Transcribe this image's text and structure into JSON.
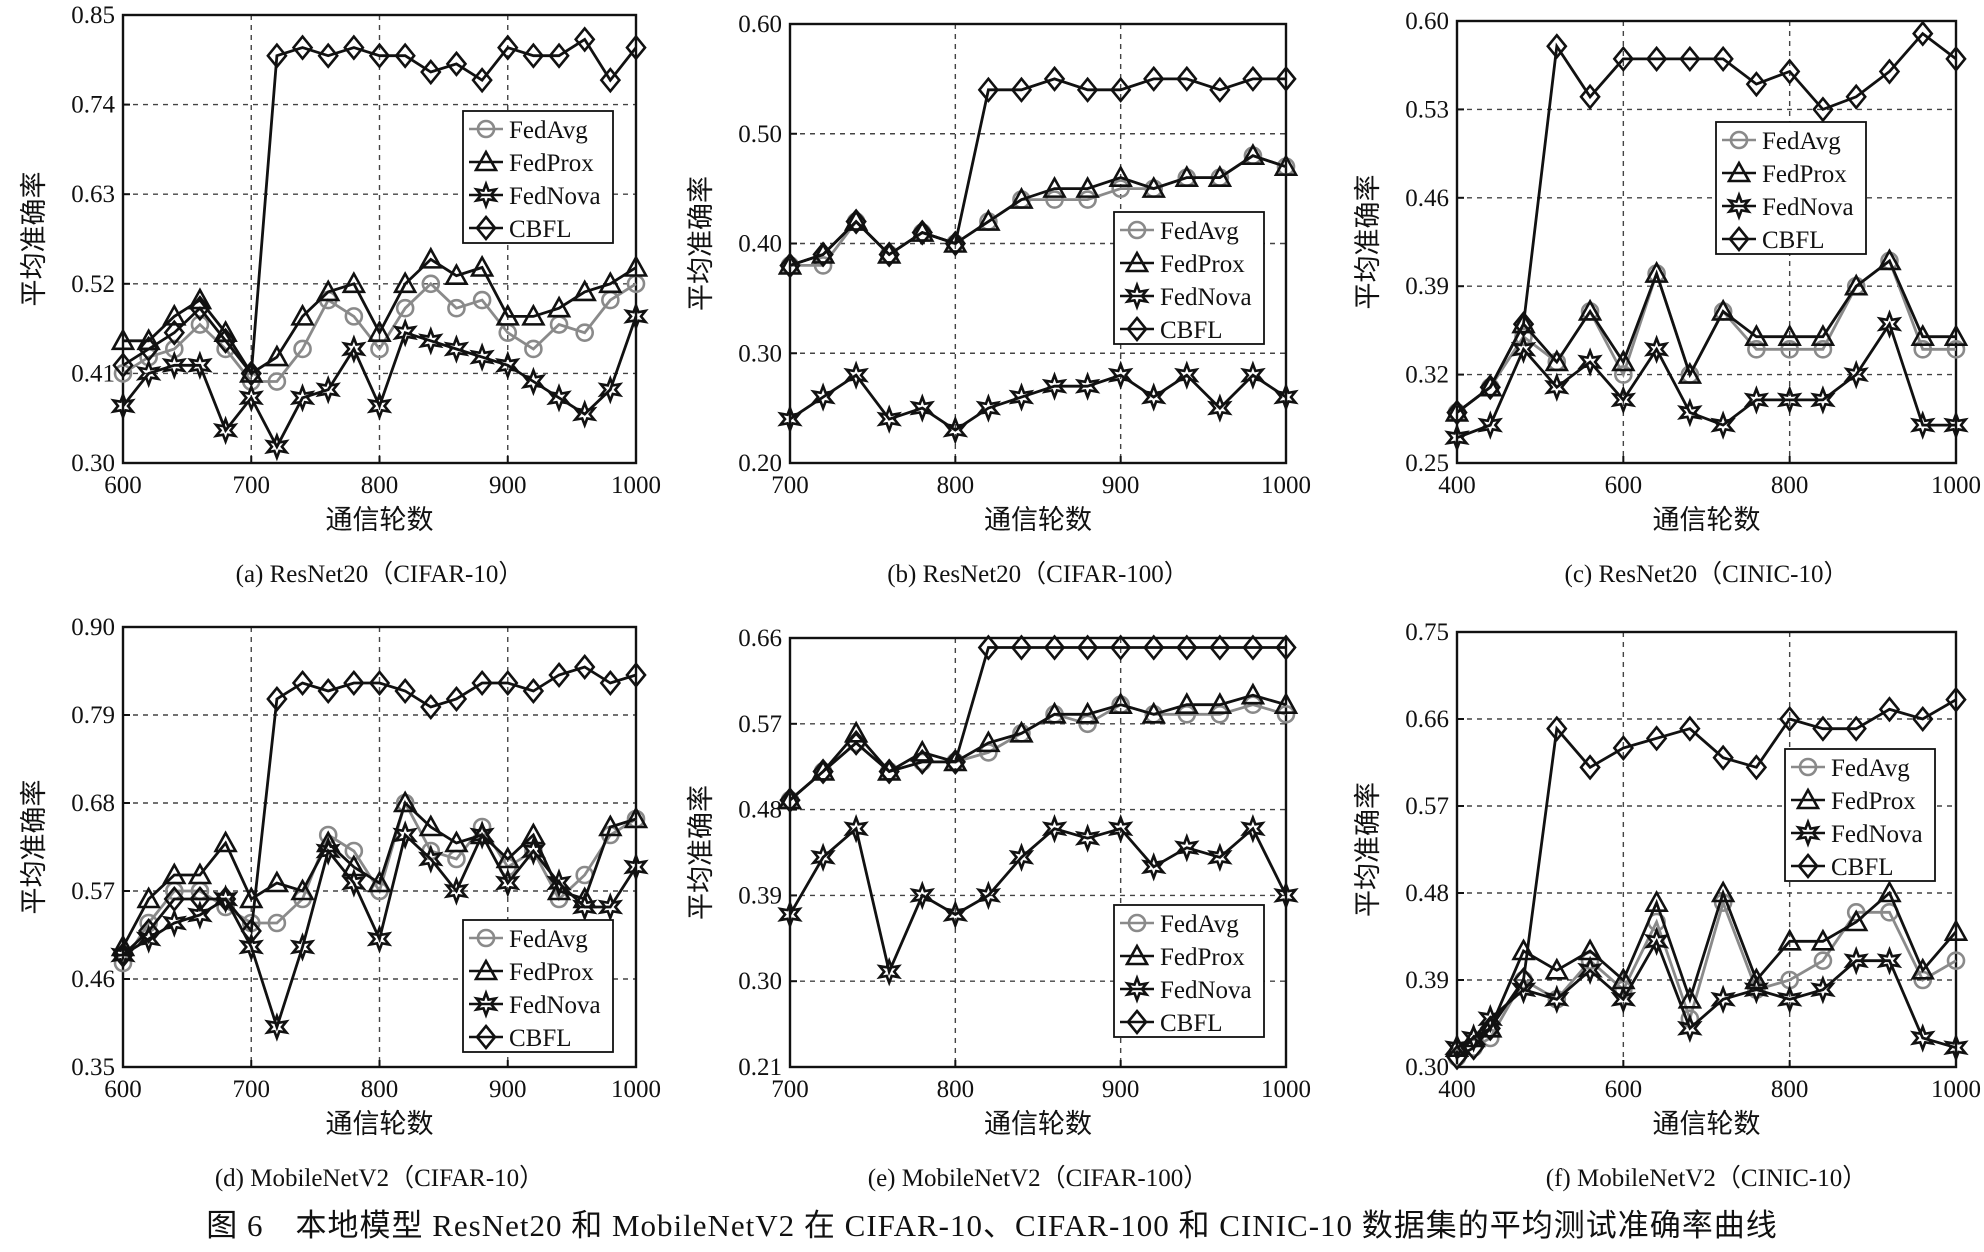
{
  "figure_caption": "图 6　本地模型 ResNet20 和 MobileNetV2 在 CIFAR-10、CIFAR-100 和 CINIC-10 数据集的平均测试准确率曲线",
  "legend_labels": [
    "FedAvg",
    "FedProx",
    "FedNova",
    "CBFL"
  ],
  "series_colors": {
    "FedAvg": "#8a8a8a",
    "FedProx": "#111111",
    "FedNova": "#111111",
    "CBFL": "#111111"
  },
  "marker_icons": {
    "FedAvg": "circle-marker",
    "FedProx": "triangle-marker",
    "FedNova": "star-marker",
    "CBFL": "diamond-marker"
  },
  "chart_data": [
    {
      "type": "line",
      "subtitle": "(a) ResNet20（CIFAR-10）",
      "xlabel": "通信轮数",
      "ylabel": "平均准确率",
      "xlim": [
        600,
        1000
      ],
      "ylim": [
        0.3,
        0.85
      ],
      "xticks": [
        600,
        700,
        800,
        900,
        1000
      ],
      "yticks": [
        "0.30",
        "0.41",
        "0.52",
        "0.63",
        "0.74",
        "0.85"
      ],
      "grid": true,
      "legend_position": "upper-right",
      "x": [
        600,
        620,
        640,
        660,
        680,
        700,
        720,
        740,
        760,
        780,
        800,
        820,
        840,
        860,
        880,
        900,
        920,
        940,
        960,
        980,
        1000
      ],
      "series": [
        {
          "name": "FedAvg",
          "values": [
            0.41,
            0.43,
            0.44,
            0.47,
            0.44,
            0.4,
            0.4,
            0.44,
            0.5,
            0.48,
            0.44,
            0.49,
            0.52,
            0.49,
            0.5,
            0.46,
            0.44,
            0.47,
            0.46,
            0.5,
            0.52
          ]
        },
        {
          "name": "FedProx",
          "values": [
            0.45,
            0.45,
            0.48,
            0.5,
            0.46,
            0.41,
            0.43,
            0.48,
            0.51,
            0.52,
            0.46,
            0.52,
            0.55,
            0.53,
            0.54,
            0.48,
            0.48,
            0.49,
            0.51,
            0.52,
            0.54
          ]
        },
        {
          "name": "FedNova",
          "values": [
            0.37,
            0.41,
            0.42,
            0.42,
            0.34,
            0.38,
            0.32,
            0.38,
            0.39,
            0.44,
            0.37,
            0.46,
            0.45,
            0.44,
            0.43,
            0.42,
            0.4,
            0.38,
            0.36,
            0.39,
            0.48
          ]
        },
        {
          "name": "CBFL",
          "values": [
            0.42,
            0.44,
            0.46,
            0.49,
            0.45,
            0.41,
            0.8,
            0.81,
            0.8,
            0.81,
            0.8,
            0.8,
            0.78,
            0.79,
            0.77,
            0.81,
            0.8,
            0.8,
            0.82,
            0.77,
            0.81
          ]
        }
      ]
    },
    {
      "type": "line",
      "subtitle": "(b) ResNet20（CIFAR-100）",
      "xlabel": "通信轮数",
      "ylabel": "平均准确率",
      "xlim": [
        700,
        1000
      ],
      "ylim": [
        0.2,
        0.6
      ],
      "xticks": [
        700,
        800,
        900,
        1000
      ],
      "yticks": [
        "0.20",
        "0.30",
        "0.40",
        "0.50",
        "0.60"
      ],
      "grid": true,
      "legend_position": "center-right",
      "x": [
        700,
        720,
        740,
        760,
        780,
        800,
        820,
        840,
        860,
        880,
        900,
        920,
        940,
        960,
        980,
        1000
      ],
      "series": [
        {
          "name": "FedAvg",
          "values": [
            0.38,
            0.38,
            0.42,
            0.39,
            0.41,
            0.4,
            0.42,
            0.44,
            0.44,
            0.44,
            0.45,
            0.45,
            0.46,
            0.46,
            0.48,
            0.47
          ]
        },
        {
          "name": "FedProx",
          "values": [
            0.38,
            0.39,
            0.42,
            0.39,
            0.41,
            0.4,
            0.42,
            0.44,
            0.45,
            0.45,
            0.46,
            0.45,
            0.46,
            0.46,
            0.48,
            0.47
          ]
        },
        {
          "name": "FedNova",
          "values": [
            0.24,
            0.26,
            0.28,
            0.24,
            0.25,
            0.23,
            0.25,
            0.26,
            0.27,
            0.27,
            0.28,
            0.26,
            0.28,
            0.25,
            0.28,
            0.26
          ]
        },
        {
          "name": "CBFL",
          "values": [
            0.38,
            0.39,
            0.42,
            0.39,
            0.41,
            0.4,
            0.54,
            0.54,
            0.55,
            0.54,
            0.54,
            0.55,
            0.55,
            0.54,
            0.55,
            0.55
          ]
        }
      ]
    },
    {
      "type": "line",
      "subtitle": "(c) ResNet20（CINIC-10）",
      "xlabel": "通信轮数",
      "ylabel": "平均准确率",
      "xlim": [
        400,
        1000
      ],
      "ylim": [
        0.25,
        0.6
      ],
      "xticks": [
        400,
        600,
        800,
        1000
      ],
      "yticks": [
        "0.25",
        "0.32",
        "0.39",
        "0.46",
        "0.53",
        "0.60"
      ],
      "grid": true,
      "legend_position": "upper-right",
      "x": [
        400,
        440,
        480,
        520,
        560,
        600,
        640,
        680,
        720,
        760,
        800,
        840,
        880,
        920,
        960,
        1000
      ],
      "series": [
        {
          "name": "FedAvg",
          "values": [
            0.29,
            0.31,
            0.35,
            0.33,
            0.37,
            0.32,
            0.4,
            0.32,
            0.37,
            0.34,
            0.34,
            0.34,
            0.39,
            0.41,
            0.34,
            0.34
          ]
        },
        {
          "name": "FedProx",
          "values": [
            0.29,
            0.31,
            0.36,
            0.33,
            0.37,
            0.33,
            0.4,
            0.32,
            0.37,
            0.35,
            0.35,
            0.35,
            0.39,
            0.41,
            0.35,
            0.35
          ]
        },
        {
          "name": "FedNova",
          "values": [
            0.27,
            0.28,
            0.34,
            0.31,
            0.33,
            0.3,
            0.34,
            0.29,
            0.28,
            0.3,
            0.3,
            0.3,
            0.32,
            0.36,
            0.28,
            0.28
          ]
        },
        {
          "name": "CBFL",
          "values": [
            0.29,
            0.31,
            0.36,
            0.58,
            0.54,
            0.57,
            0.57,
            0.57,
            0.57,
            0.55,
            0.56,
            0.53,
            0.54,
            0.56,
            0.59,
            0.57
          ]
        }
      ]
    },
    {
      "type": "line",
      "subtitle": "(d) MobileNetV2（CIFAR-10）",
      "xlabel": "通信轮数",
      "ylabel": "平均准确率",
      "xlim": [
        600,
        1000
      ],
      "ylim": [
        0.35,
        0.9
      ],
      "xticks": [
        600,
        700,
        800,
        900,
        1000
      ],
      "yticks": [
        "0.35",
        "0.46",
        "0.57",
        "0.68",
        "0.79",
        "0.90"
      ],
      "grid": true,
      "legend_position": "lower-right",
      "x": [
        600,
        620,
        640,
        660,
        680,
        700,
        720,
        740,
        760,
        780,
        800,
        820,
        840,
        860,
        880,
        900,
        920,
        940,
        960,
        980,
        1000
      ],
      "series": [
        {
          "name": "FedAvg",
          "values": [
            0.48,
            0.53,
            0.57,
            0.57,
            0.55,
            0.53,
            0.53,
            0.56,
            0.64,
            0.62,
            0.57,
            0.68,
            0.62,
            0.61,
            0.65,
            0.6,
            0.62,
            0.56,
            0.59,
            0.64,
            0.66
          ]
        },
        {
          "name": "FedProx",
          "values": [
            0.5,
            0.56,
            0.59,
            0.59,
            0.63,
            0.56,
            0.58,
            0.57,
            0.63,
            0.6,
            0.58,
            0.68,
            0.65,
            0.63,
            0.64,
            0.61,
            0.64,
            0.57,
            0.56,
            0.65,
            0.66
          ]
        },
        {
          "name": "FedNova",
          "values": [
            0.49,
            0.51,
            0.53,
            0.54,
            0.56,
            0.5,
            0.4,
            0.5,
            0.62,
            0.58,
            0.51,
            0.64,
            0.61,
            0.57,
            0.64,
            0.58,
            0.62,
            0.58,
            0.55,
            0.55,
            0.6
          ]
        },
        {
          "name": "CBFL",
          "values": [
            0.49,
            0.52,
            0.56,
            0.56,
            0.56,
            0.52,
            0.81,
            0.83,
            0.82,
            0.83,
            0.83,
            0.82,
            0.8,
            0.81,
            0.83,
            0.83,
            0.82,
            0.84,
            0.85,
            0.83,
            0.84
          ]
        }
      ]
    },
    {
      "type": "line",
      "subtitle": "(e) MobileNetV2（CIFAR-100）",
      "xlabel": "通信轮数",
      "ylabel": "平均准确率",
      "xlim": [
        700,
        1000
      ],
      "ylim": [
        0.21,
        0.66
      ],
      "xticks": [
        700,
        800,
        900,
        1000
      ],
      "yticks": [
        "0.21",
        "0.30",
        "0.39",
        "0.48",
        "0.57",
        "0.66"
      ],
      "grid": true,
      "legend_position": "lower-right",
      "x": [
        700,
        720,
        740,
        760,
        780,
        800,
        820,
        840,
        860,
        880,
        900,
        920,
        940,
        960,
        980,
        1000
      ],
      "series": [
        {
          "name": "FedAvg",
          "values": [
            0.49,
            0.52,
            0.55,
            0.52,
            0.53,
            0.53,
            0.54,
            0.56,
            0.58,
            0.57,
            0.59,
            0.58,
            0.58,
            0.58,
            0.59,
            0.58
          ]
        },
        {
          "name": "FedProx",
          "values": [
            0.49,
            0.52,
            0.56,
            0.52,
            0.54,
            0.53,
            0.55,
            0.56,
            0.58,
            0.58,
            0.59,
            0.58,
            0.59,
            0.59,
            0.6,
            0.59
          ]
        },
        {
          "name": "FedNova",
          "values": [
            0.37,
            0.43,
            0.46,
            0.31,
            0.39,
            0.37,
            0.39,
            0.43,
            0.46,
            0.45,
            0.46,
            0.42,
            0.44,
            0.43,
            0.46,
            0.39
          ]
        },
        {
          "name": "CBFL",
          "values": [
            0.49,
            0.52,
            0.55,
            0.52,
            0.53,
            0.53,
            0.65,
            0.65,
            0.65,
            0.65,
            0.65,
            0.65,
            0.65,
            0.65,
            0.65,
            0.65
          ]
        }
      ]
    },
    {
      "type": "line",
      "subtitle": "(f) MobileNetV2（CINIC-10）",
      "xlabel": "通信轮数",
      "ylabel": "平均准确率",
      "xlim": [
        400,
        1000
      ],
      "ylim": [
        0.3,
        0.75
      ],
      "xticks": [
        400,
        600,
        800,
        1000
      ],
      "yticks": [
        "0.30",
        "0.39",
        "0.48",
        "0.57",
        "0.66",
        "0.75"
      ],
      "grid": true,
      "legend_position": "center-right",
      "x": [
        400,
        420,
        440,
        480,
        520,
        560,
        600,
        640,
        680,
        720,
        760,
        800,
        840,
        880,
        920,
        960,
        1000
      ],
      "series": [
        {
          "name": "FedAvg",
          "values": [
            0.31,
            0.32,
            0.33,
            0.39,
            0.37,
            0.41,
            0.38,
            0.45,
            0.35,
            0.47,
            0.38,
            0.39,
            0.41,
            0.46,
            0.46,
            0.39,
            0.41
          ]
        },
        {
          "name": "FedProx",
          "values": [
            0.32,
            0.33,
            0.34,
            0.42,
            0.4,
            0.42,
            0.39,
            0.47,
            0.37,
            0.48,
            0.39,
            0.43,
            0.43,
            0.45,
            0.48,
            0.4,
            0.44
          ]
        },
        {
          "name": "FedNova",
          "values": [
            0.32,
            0.33,
            0.35,
            0.38,
            0.37,
            0.4,
            0.37,
            0.43,
            0.34,
            0.37,
            0.38,
            0.37,
            0.38,
            0.41,
            0.41,
            0.33,
            0.32
          ]
        },
        {
          "name": "CBFL",
          "values": [
            0.31,
            0.32,
            0.34,
            0.39,
            0.65,
            0.61,
            0.63,
            0.64,
            0.65,
            0.62,
            0.61,
            0.66,
            0.65,
            0.65,
            0.67,
            0.66,
            0.68
          ]
        }
      ]
    }
  ]
}
